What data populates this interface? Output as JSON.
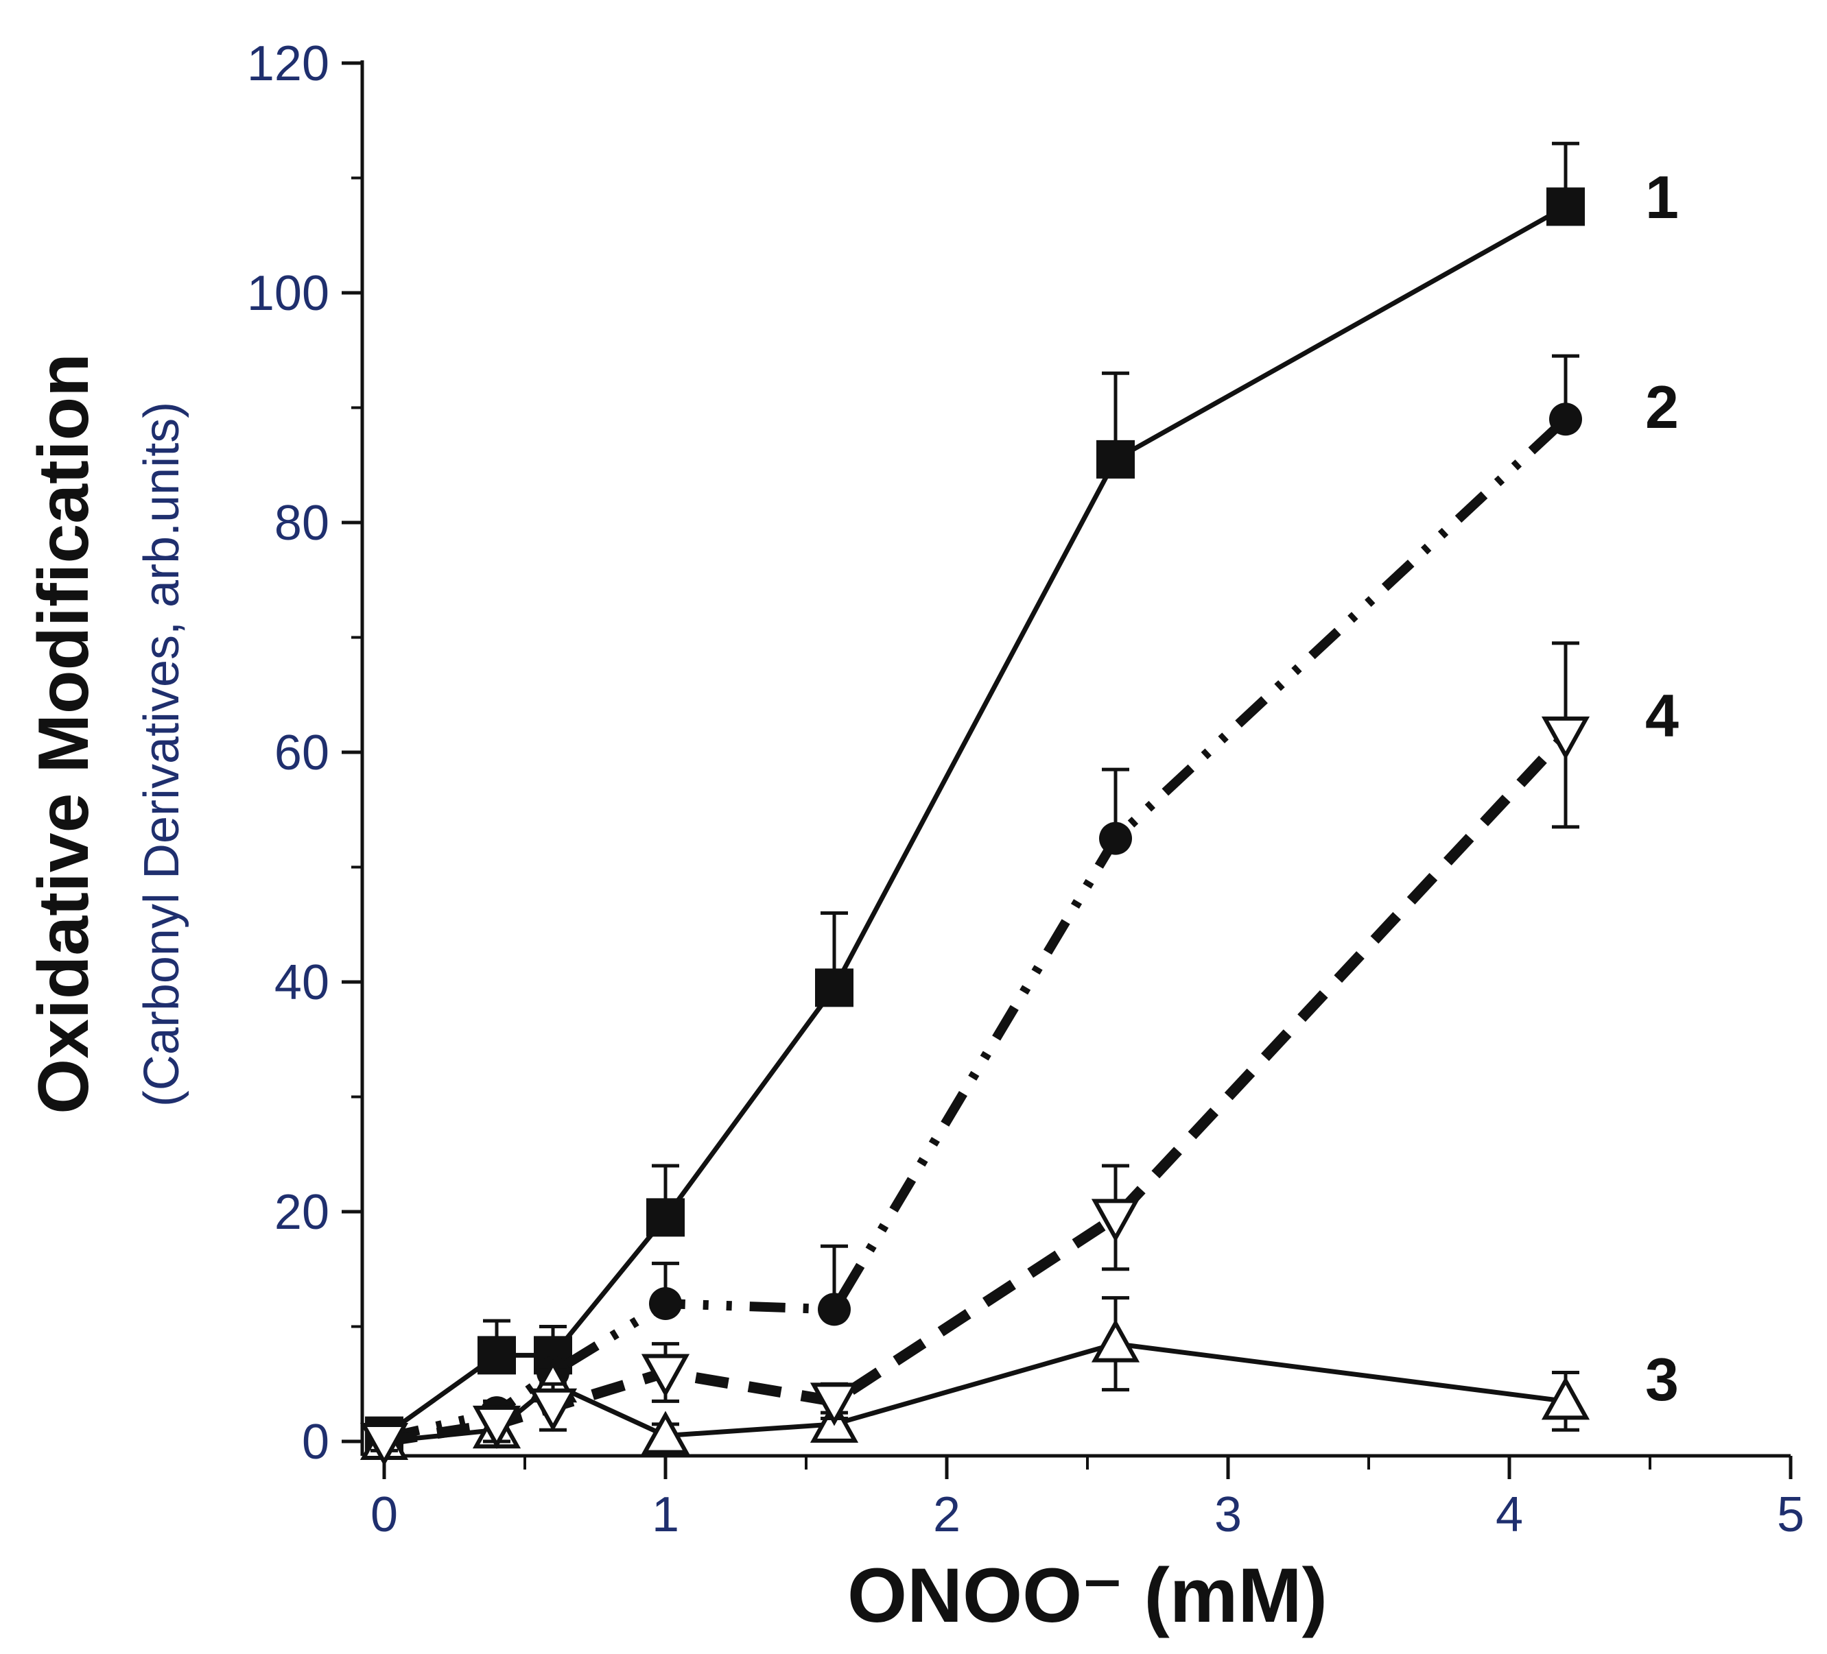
{
  "chart_data": {
    "type": "line",
    "xlabel": "ONOO⁻ (mM)",
    "ylabel": "Oxidative Modification",
    "ylabel_sub": "(Carbonyl Derivatives, arb.units)",
    "xlim": [
      0,
      5
    ],
    "ylim": [
      0,
      120
    ],
    "x_ticks": [
      "0",
      "1",
      "2",
      "3",
      "4",
      "5"
    ],
    "y_ticks": [
      "0",
      "20",
      "40",
      "60",
      "80",
      "100",
      "120"
    ],
    "grid": false,
    "series": [
      {
        "name": "1",
        "marker": "square-filled",
        "line": "solid",
        "points": [
          {
            "x": 0.0,
            "y": 0.5,
            "err": 1.5
          },
          {
            "x": 0.4,
            "y": 7.5,
            "err": 3.0
          },
          {
            "x": 0.6,
            "y": 7.5,
            "err": 2.5
          },
          {
            "x": 1.0,
            "y": 19.5,
            "err": 4.5
          },
          {
            "x": 1.6,
            "y": 39.5,
            "err": 6.5
          },
          {
            "x": 2.6,
            "y": 85.5,
            "err": 7.5
          },
          {
            "x": 4.2,
            "y": 107.5,
            "err": 5.5
          }
        ]
      },
      {
        "name": "2",
        "marker": "circle-filled",
        "line": "dash-dot-dot",
        "points": [
          {
            "x": 0.0,
            "y": 0.3,
            "err": 1.0
          },
          {
            "x": 0.4,
            "y": 2.5,
            "err": 1.0
          },
          {
            "x": 0.6,
            "y": 6.0,
            "err": 3.0
          },
          {
            "x": 1.0,
            "y": 12.0,
            "err": 3.5
          },
          {
            "x": 1.6,
            "y": 11.5,
            "err": 5.5
          },
          {
            "x": 2.6,
            "y": 52.5,
            "err": 6.0
          },
          {
            "x": 4.2,
            "y": 89.0,
            "err": 5.5
          }
        ]
      },
      {
        "name": "3",
        "marker": "triangle-up-open",
        "line": "solid",
        "points": [
          {
            "x": 0.0,
            "y": 0.0,
            "err": 0.8
          },
          {
            "x": 0.4,
            "y": 1.0,
            "err": 1.0
          },
          {
            "x": 0.6,
            "y": 5.0,
            "err": 1.5
          },
          {
            "x": 1.0,
            "y": 0.5,
            "err": 1.0
          },
          {
            "x": 1.6,
            "y": 1.5,
            "err": 1.0
          },
          {
            "x": 2.6,
            "y": 8.5,
            "err": 4.0
          },
          {
            "x": 4.2,
            "y": 3.5,
            "err": 2.5
          }
        ]
      },
      {
        "name": "4",
        "marker": "triangle-down-open",
        "line": "dashed",
        "points": [
          {
            "x": 0.0,
            "y": 0.0,
            "err": 0.8
          },
          {
            "x": 0.4,
            "y": 1.5,
            "err": 1.5
          },
          {
            "x": 0.6,
            "y": 3.0,
            "err": 2.0
          },
          {
            "x": 1.0,
            "y": 6.0,
            "err": 2.5
          },
          {
            "x": 1.6,
            "y": 3.5,
            "err": 1.5
          },
          {
            "x": 2.6,
            "y": 19.5,
            "err": 4.5
          },
          {
            "x": 4.2,
            "y": 61.5,
            "err": 8.0
          }
        ]
      }
    ]
  }
}
